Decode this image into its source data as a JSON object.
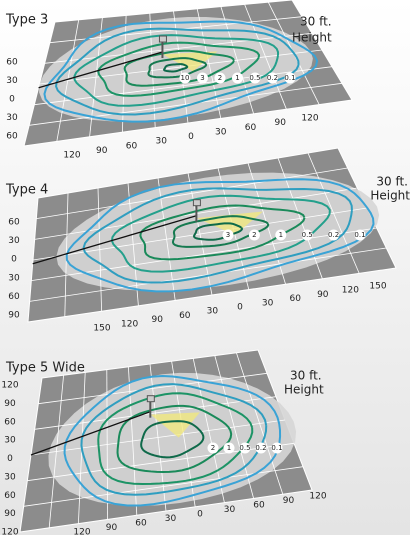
{
  "panels": [
    {
      "title": "Type 3",
      "height_label": [
        "30 ft.",
        "Height"
      ],
      "side_labels": [
        "60",
        "30",
        "0",
        "30",
        "60"
      ],
      "bottom_labels": [
        "120",
        "90",
        "60",
        "30",
        "0",
        "30",
        "60",
        "90",
        "120"
      ],
      "contour_labels": [
        "10",
        "3",
        "2",
        "1",
        "0.5",
        "0.2",
        "0.1"
      ]
    },
    {
      "title": "Type 4",
      "height_label": [
        "30 ft.",
        "Height"
      ],
      "side_labels": [
        "60",
        "30",
        "0",
        "30",
        "60",
        "90"
      ],
      "bottom_labels": [
        "150",
        "120",
        "90",
        "60",
        "30",
        "0",
        "30",
        "60",
        "90",
        "120",
        "150"
      ],
      "contour_labels": [
        "3",
        "2",
        "1",
        "0.5",
        "0.2",
        "0.1"
      ]
    },
    {
      "title": "Type 5 Wide",
      "height_label": [
        "30 ft.",
        "Height"
      ],
      "side_labels": [
        "120",
        "90",
        "60",
        "30",
        "0",
        "30",
        "60",
        "90",
        "120"
      ],
      "bottom_labels": [
        "120",
        "90",
        "60",
        "30",
        "0",
        "30",
        "60",
        "90",
        "120"
      ],
      "contour_labels": [
        "2",
        "1",
        "0.5",
        "0.2",
        "0.1"
      ]
    }
  ]
}
